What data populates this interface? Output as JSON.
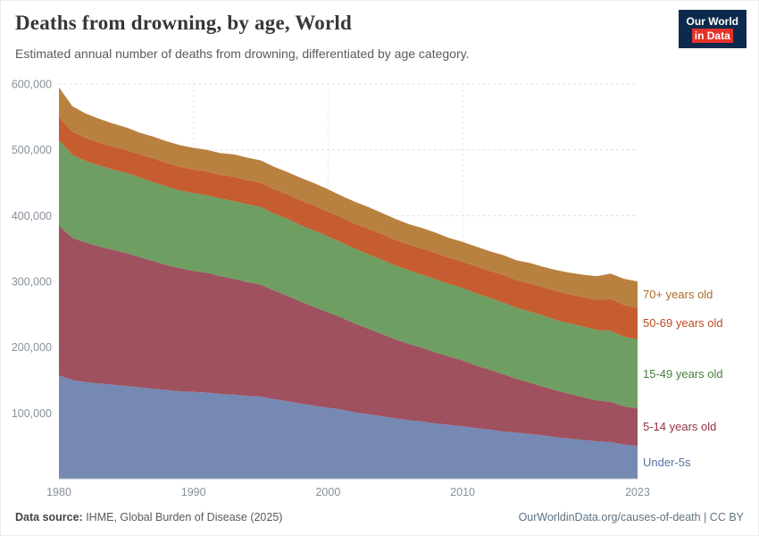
{
  "header": {
    "title": "Deaths from drowning, by age, World",
    "subtitle": "Estimated annual number of deaths from drowning, differentiated by age category.",
    "logo": {
      "line1": "Our World",
      "line2": "in Data",
      "bg": "#0c2a4d",
      "accent": "#e5332a"
    }
  },
  "footer": {
    "datasource_label": "Data source:",
    "datasource_text": " IHME, Global Burden of Disease (2025)",
    "credit": "OurWorldinData.org/causes-of-death | CC BY"
  },
  "chart_data": {
    "type": "area",
    "stacked": true,
    "title": "Deaths from drowning, by age, World",
    "xlabel": "",
    "ylabel": "",
    "ylim": [
      0,
      600000
    ],
    "grid": true,
    "legend_position": "right",
    "x": [
      1980,
      1981,
      1982,
      1983,
      1984,
      1985,
      1986,
      1987,
      1988,
      1989,
      1990,
      1991,
      1992,
      1993,
      1994,
      1995,
      1996,
      1997,
      1998,
      1999,
      2000,
      2001,
      2002,
      2003,
      2004,
      2005,
      2006,
      2007,
      2008,
      2009,
      2010,
      2011,
      2012,
      2013,
      2014,
      2015,
      2016,
      2017,
      2018,
      2019,
      2020,
      2021,
      2022,
      2023
    ],
    "y_ticks": [
      {
        "value": 100000,
        "label": "100,000"
      },
      {
        "value": 200000,
        "label": "200,000"
      },
      {
        "value": 300000,
        "label": "300,000"
      },
      {
        "value": 400000,
        "label": "400,000"
      },
      {
        "value": 500000,
        "label": "500,000"
      },
      {
        "value": 600000,
        "label": "600,000"
      }
    ],
    "x_ticks": [
      {
        "value": 1980,
        "label": "1980"
      },
      {
        "value": 1990,
        "label": "1990"
      },
      {
        "value": 2000,
        "label": "2000"
      },
      {
        "value": 2010,
        "label": "2010"
      },
      {
        "value": 2023,
        "label": "2023"
      }
    ],
    "series": [
      {
        "name": "Under-5s",
        "color": "#7589b3",
        "label_color": "#566fa4",
        "values": [
          157000,
          150000,
          147000,
          145000,
          143000,
          141000,
          139000,
          137000,
          135000,
          133000,
          132000,
          131000,
          129000,
          128000,
          126000,
          125000,
          121000,
          118000,
          114000,
          111000,
          108000,
          105000,
          101000,
          98000,
          95000,
          92000,
          89000,
          87000,
          84000,
          82000,
          80000,
          77000,
          75000,
          72000,
          70000,
          68000,
          66000,
          63000,
          61000,
          59000,
          57000,
          56000,
          52000,
          50000
        ]
      },
      {
        "name": "5-14 years old",
        "color": "#9f5160",
        "label_color": "#93323f",
        "values": [
          228000,
          216000,
          212000,
          208000,
          205000,
          202000,
          198000,
          194000,
          190000,
          187000,
          184000,
          182000,
          179000,
          176000,
          173000,
          170000,
          165000,
          160000,
          155000,
          150000,
          145000,
          140000,
          135000,
          130000,
          125000,
          120000,
          116000,
          112000,
          108000,
          104000,
          100000,
          95000,
          91000,
          87000,
          82000,
          78000,
          74000,
          71000,
          68000,
          65000,
          62000,
          61000,
          58000,
          57000
        ]
      },
      {
        "name": "15-49 years old",
        "color": "#6f9e62",
        "label_color": "#47803c",
        "values": [
          130000,
          126000,
          124000,
          123000,
          122000,
          122000,
          121000,
          120000,
          119000,
          118000,
          118000,
          118000,
          118000,
          118000,
          118000,
          118000,
          117000,
          117000,
          116000,
          116000,
          115000,
          114000,
          114000,
          113000,
          113000,
          112000,
          112000,
          111000,
          111000,
          110000,
          110000,
          110000,
          109000,
          109000,
          108000,
          108000,
          108000,
          107000,
          107000,
          107000,
          107000,
          108000,
          106000,
          105000
        ]
      },
      {
        "name": "50-69 years old",
        "color": "#c55d30",
        "label_color": "#bb4a20",
        "values": [
          35000,
          35000,
          35000,
          35000,
          35000,
          35000,
          35000,
          36000,
          36000,
          36000,
          36000,
          36000,
          36000,
          37000,
          37000,
          37000,
          37000,
          37000,
          38000,
          38000,
          38000,
          38000,
          38000,
          39000,
          39000,
          39000,
          39000,
          40000,
          40000,
          40000,
          40000,
          41000,
          41000,
          42000,
          42000,
          43000,
          43000,
          44000,
          44000,
          45000,
          46000,
          48000,
          48000,
          48000
        ]
      },
      {
        "name": "70+ years old",
        "color": "#b98140",
        "label_color": "#ad6d28",
        "values": [
          45000,
          39000,
          37000,
          36000,
          35000,
          34000,
          33000,
          33000,
          33000,
          33000,
          33000,
          33000,
          33000,
          34000,
          34000,
          34000,
          34000,
          34000,
          34000,
          34000,
          34000,
          33000,
          33000,
          33000,
          32000,
          32000,
          31000,
          31000,
          31000,
          30000,
          30000,
          30000,
          30000,
          30000,
          30000,
          31000,
          31000,
          32000,
          33000,
          34000,
          36000,
          39000,
          40000,
          40000
        ]
      }
    ]
  }
}
